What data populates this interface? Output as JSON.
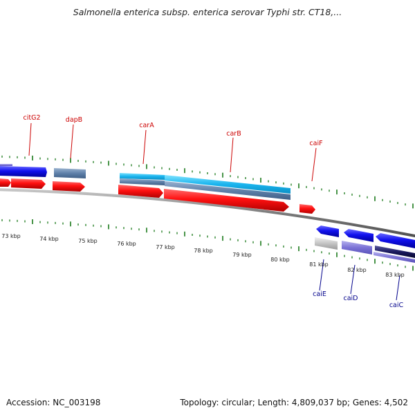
{
  "title": "Salmonella enterica subsp. enterica serovar Typhi str. CT18,...",
  "footer": {
    "accession": "Accession: NC_003198",
    "topology": "Topology: circular; Length: 4,809,037 bp; Genes: 4,502"
  },
  "colors": {
    "forward_label": "#cc0000",
    "reverse_label": "#00008b",
    "tick": "#1a7a1a",
    "backbone": "#8a8a8a"
  },
  "scale_labels": [
    "73 kbp",
    "74 kbp",
    "75 kbp",
    "76 kbp",
    "77 kbp",
    "78 kbp",
    "79 kbp",
    "80 kbp",
    "81 kbp",
    "82 kbp",
    "83 kbp"
  ],
  "gene_labels": {
    "forward": [
      "citG2",
      "dapB",
      "carA",
      "carB",
      "caiF"
    ],
    "reverse": [
      "caiE",
      "caiD",
      "caiC"
    ]
  }
}
